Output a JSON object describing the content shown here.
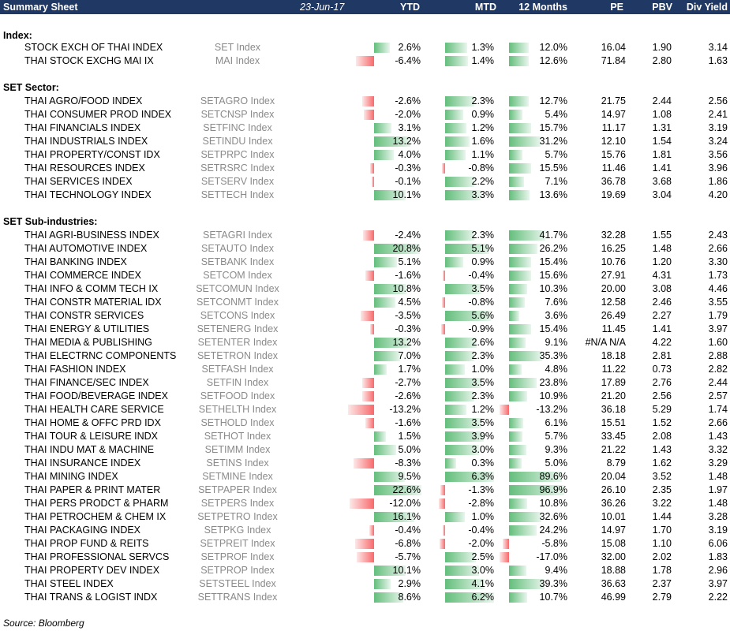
{
  "header": {
    "title": "Summary Sheet",
    "date": "23-Jun-17",
    "columns": [
      "YTD",
      "MTD",
      "12 Months",
      "PE",
      "PBV",
      "Div Yield"
    ]
  },
  "colors": {
    "header_bg": "#1f3864",
    "positive_bar": "#63be7b",
    "negative_bar": "#f8696b"
  },
  "sections": [
    {
      "title": "Index:",
      "rows": [
        {
          "name": "STOCK EXCH OF THAI INDEX",
          "ticker": "SET Index",
          "ytd": "2.6%",
          "mtd": "1.3%",
          "m12": "12.0%",
          "pe": "16.04",
          "pbv": "1.90",
          "dy": "3.14"
        },
        {
          "name": "THAI STOCK EXCHG MAI IX",
          "ticker": "MAI Index",
          "ytd": "-6.4%",
          "mtd": "1.4%",
          "m12": "12.6%",
          "pe": "71.84",
          "pbv": "2.80",
          "dy": "1.63"
        }
      ]
    },
    {
      "title": "SET Sector:",
      "rows": [
        {
          "name": "THAI AGRO/FOOD INDEX",
          "ticker": "SETAGRO Index",
          "ytd": "-2.6%",
          "mtd": "2.3%",
          "m12": "12.7%",
          "pe": "21.75",
          "pbv": "2.44",
          "dy": "2.56"
        },
        {
          "name": "THAI CONSUMER PROD INDEX",
          "ticker": "SETCNSP Index",
          "ytd": "-2.0%",
          "mtd": "0.9%",
          "m12": "5.4%",
          "pe": "14.97",
          "pbv": "1.08",
          "dy": "2.41"
        },
        {
          "name": "THAI FINANCIALS INDEX",
          "ticker": "SETFINC Index",
          "ytd": "3.1%",
          "mtd": "1.2%",
          "m12": "15.7%",
          "pe": "11.17",
          "pbv": "1.31",
          "dy": "3.19"
        },
        {
          "name": "THAI INDUSTRIALS INDEX",
          "ticker": "SETINDU Index",
          "ytd": "13.2%",
          "mtd": "1.6%",
          "m12": "31.2%",
          "pe": "12.10",
          "pbv": "1.54",
          "dy": "3.24"
        },
        {
          "name": "THAI PROPERTY/CONST IDX",
          "ticker": "SETPRPC Index",
          "ytd": "4.0%",
          "mtd": "1.1%",
          "m12": "5.7%",
          "pe": "15.76",
          "pbv": "1.81",
          "dy": "3.56"
        },
        {
          "name": "THAI RESOURCES INDEX",
          "ticker": "SETRSRC Index",
          "ytd": "-0.3%",
          "mtd": "-0.8%",
          "m12": "15.5%",
          "pe": "11.46",
          "pbv": "1.41",
          "dy": "3.96"
        },
        {
          "name": "THAI SERVICES INDEX",
          "ticker": "SETSERV Index",
          "ytd": "-0.1%",
          "mtd": "2.2%",
          "m12": "7.1%",
          "pe": "36.78",
          "pbv": "3.68",
          "dy": "1.86"
        },
        {
          "name": "THAI TECHNOLOGY INDEX",
          "ticker": "SETTECH Index",
          "ytd": "10.1%",
          "mtd": "3.3%",
          "m12": "13.6%",
          "pe": "19.69",
          "pbv": "3.04",
          "dy": "4.20"
        }
      ]
    },
    {
      "title": "SET Sub-industries:",
      "rows": [
        {
          "name": "THAI AGRI-BUSINESS INDEX",
          "ticker": "SETAGRI Index",
          "ytd": "-2.4%",
          "mtd": "2.3%",
          "m12": "41.7%",
          "pe": "32.28",
          "pbv": "1.55",
          "dy": "2.43"
        },
        {
          "name": "THAI AUTOMOTIVE INDEX",
          "ticker": "SETAUTO Index",
          "ytd": "20.8%",
          "mtd": "5.1%",
          "m12": "26.2%",
          "pe": "16.25",
          "pbv": "1.48",
          "dy": "2.66"
        },
        {
          "name": "THAI BANKING INDEX",
          "ticker": "SETBANK Index",
          "ytd": "5.1%",
          "mtd": "0.9%",
          "m12": "15.4%",
          "pe": "10.76",
          "pbv": "1.20",
          "dy": "3.30"
        },
        {
          "name": "THAI COMMERCE INDEX",
          "ticker": "SETCOM Index",
          "ytd": "-1.6%",
          "mtd": "-0.4%",
          "m12": "15.6%",
          "pe": "27.91",
          "pbv": "4.31",
          "dy": "1.73"
        },
        {
          "name": "THAI INFO & COMM TECH IX",
          "ticker": "SETCOMUN Index",
          "ytd": "10.8%",
          "mtd": "3.5%",
          "m12": "10.3%",
          "pe": "20.00",
          "pbv": "3.08",
          "dy": "4.46"
        },
        {
          "name": "THAI CONSTR MATERIAL IDX",
          "ticker": "SETCONMT Index",
          "ytd": "4.5%",
          "mtd": "-0.8%",
          "m12": "7.6%",
          "pe": "12.58",
          "pbv": "2.46",
          "dy": "3.55"
        },
        {
          "name": "THAI CONSTR SERVICES",
          "ticker": "SETCONS Index",
          "ytd": "-3.5%",
          "mtd": "5.6%",
          "m12": "3.6%",
          "pe": "26.49",
          "pbv": "2.27",
          "dy": "1.79"
        },
        {
          "name": "THAI ENERGY & UTILITIES",
          "ticker": "SETENERG Index",
          "ytd": "-0.3%",
          "mtd": "-0.9%",
          "m12": "15.4%",
          "pe": "11.45",
          "pbv": "1.41",
          "dy": "3.97"
        },
        {
          "name": "THAI MEDIA & PUBLISHING",
          "ticker": "SETENTER Index",
          "ytd": "13.2%",
          "mtd": "2.6%",
          "m12": "9.1%",
          "pe": "#N/A N/A",
          "pbv": "4.22",
          "dy": "1.60"
        },
        {
          "name": "THAI ELECTRNC COMPONENTS",
          "ticker": "SETETRON Index",
          "ytd": "7.0%",
          "mtd": "2.3%",
          "m12": "35.3%",
          "pe": "18.18",
          "pbv": "2.81",
          "dy": "2.88"
        },
        {
          "name": "THAI FASHION INDEX",
          "ticker": "SETFASH Index",
          "ytd": "1.7%",
          "mtd": "1.0%",
          "m12": "4.8%",
          "pe": "11.22",
          "pbv": "0.73",
          "dy": "2.82"
        },
        {
          "name": "THAI FINANCE/SEC INDEX",
          "ticker": "SETFIN Index",
          "ytd": "-2.7%",
          "mtd": "3.5%",
          "m12": "23.8%",
          "pe": "17.89",
          "pbv": "2.76",
          "dy": "2.44"
        },
        {
          "name": "THAI FOOD/BEVERAGE INDEX",
          "ticker": "SETFOOD Index",
          "ytd": "-2.6%",
          "mtd": "2.3%",
          "m12": "10.9%",
          "pe": "21.20",
          "pbv": "2.56",
          "dy": "2.57"
        },
        {
          "name": "THAI HEALTH CARE SERVICE",
          "ticker": "SETHELTH Index",
          "ytd": "-13.2%",
          "mtd": "1.2%",
          "m12": "-13.2%",
          "pe": "36.18",
          "pbv": "5.29",
          "dy": "1.74"
        },
        {
          "name": "THAI HOME & OFFC PRD IDX",
          "ticker": "SETHOLD Index",
          "ytd": "-1.6%",
          "mtd": "3.5%",
          "m12": "6.1%",
          "pe": "15.51",
          "pbv": "1.52",
          "dy": "2.66"
        },
        {
          "name": "THAI TOUR & LEISURE INDX",
          "ticker": "SETHOT Index",
          "ytd": "1.5%",
          "mtd": "3.9%",
          "m12": "5.7%",
          "pe": "33.45",
          "pbv": "2.08",
          "dy": "1.43"
        },
        {
          "name": "THAI INDU MAT & MACHINE",
          "ticker": "SETIMM Index",
          "ytd": "5.0%",
          "mtd": "3.0%",
          "m12": "9.3%",
          "pe": "21.22",
          "pbv": "1.43",
          "dy": "3.32"
        },
        {
          "name": "THAI INSURANCE INDEX",
          "ticker": "SETINS Index",
          "ytd": "-8.3%",
          "mtd": "0.3%",
          "m12": "5.0%",
          "pe": "8.79",
          "pbv": "1.62",
          "dy": "3.29"
        },
        {
          "name": "THAI MINING INDEX",
          "ticker": "SETMINE Index",
          "ytd": "9.5%",
          "mtd": "6.3%",
          "m12": "89.6%",
          "pe": "20.04",
          "pbv": "3.52",
          "dy": "1.48"
        },
        {
          "name": "THAI PAPER & PRINT MATER",
          "ticker": "SETPAPER Index",
          "ytd": "22.6%",
          "mtd": "-1.3%",
          "m12": "96.9%",
          "pe": "26.10",
          "pbv": "2.35",
          "dy": "1.97"
        },
        {
          "name": "THAI PERS PRODCT & PHARM",
          "ticker": "SETPERS Index",
          "ytd": "-12.0%",
          "mtd": "-2.8%",
          "m12": "10.8%",
          "pe": "36.26",
          "pbv": "3.22",
          "dy": "1.48"
        },
        {
          "name": "THAI PETROCHEM & CHEM IX",
          "ticker": "SETPETRO Index",
          "ytd": "16.1%",
          "mtd": "1.0%",
          "m12": "32.6%",
          "pe": "10.01",
          "pbv": "1.44",
          "dy": "3.28"
        },
        {
          "name": "THAI PACKAGING INDEX",
          "ticker": "SETPKG Index",
          "ytd": "-0.4%",
          "mtd": "-0.4%",
          "m12": "24.2%",
          "pe": "14.97",
          "pbv": "1.70",
          "dy": "3.19"
        },
        {
          "name": "THAI PROP FUND & REITS",
          "ticker": "SETPREIT Index",
          "ytd": "-6.8%",
          "mtd": "-2.0%",
          "m12": "-5.8%",
          "pe": "15.08",
          "pbv": "1.10",
          "dy": "6.06"
        },
        {
          "name": "THAI PROFESSIONAL SERVCS",
          "ticker": "SETPROF Index",
          "ytd": "-5.7%",
          "mtd": "2.5%",
          "m12": "-17.0%",
          "pe": "32.00",
          "pbv": "2.02",
          "dy": "1.83"
        },
        {
          "name": "THAI PROPERTY DEV INDEX",
          "ticker": "SETPROP Index",
          "ytd": "10.1%",
          "mtd": "3.0%",
          "m12": "9.4%",
          "pe": "18.88",
          "pbv": "1.78",
          "dy": "2.96"
        },
        {
          "name": "THAI STEEL INDEX",
          "ticker": "SETSTEEL Index",
          "ytd": "2.9%",
          "mtd": "4.1%",
          "m12": "39.3%",
          "pe": "36.63",
          "pbv": "2.37",
          "dy": "3.97"
        },
        {
          "name": "THAI TRANS & LOGIST INDX",
          "ticker": "SETTRANS Index",
          "ytd": "8.6%",
          "mtd": "6.2%",
          "m12": "10.7%",
          "pe": "46.99",
          "pbv": "2.79",
          "dy": "2.22"
        }
      ]
    }
  ],
  "footer": {
    "source": "Source: Bloomberg"
  }
}
